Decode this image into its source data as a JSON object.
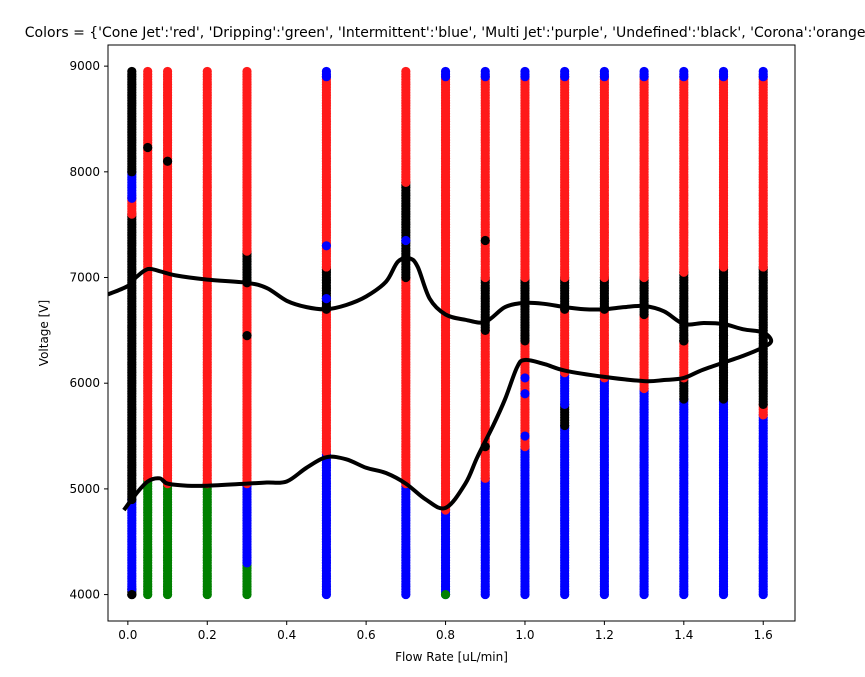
{
  "chart_data": {
    "type": "scatter",
    "title": "Colors = {'Cone Jet':'red', 'Dripping':'green', 'Intermittent':'blue', 'Multi Jet':'purple', 'Undefined':'black', 'Corona':'orange'}",
    "xlabel": "Flow Rate [uL/min]",
    "ylabel": "Voltage [V]",
    "xlim": [
      -0.05,
      1.68
    ],
    "ylim": [
      3750,
      9200
    ],
    "xticks": [
      0.0,
      0.2,
      0.4,
      0.6,
      0.8,
      1.0,
      1.2,
      1.4,
      1.6
    ],
    "xtick_labels": [
      "0.0",
      "0.2",
      "0.4",
      "0.6",
      "0.8",
      "1.0",
      "1.2",
      "1.4",
      "1.6"
    ],
    "yticks": [
      4000,
      5000,
      6000,
      7000,
      8000,
      9000
    ],
    "ytick_labels": [
      "4000",
      "5000",
      "6000",
      "7000",
      "8000",
      "9000"
    ],
    "grid": false,
    "colors": {
      "Cone Jet": "#ff1a1a",
      "Dripping": "#008000",
      "Intermittent": "#0000ff",
      "Multi Jet": "#800080",
      "Undefined": "#000000",
      "Corona": "#ffa500"
    },
    "series": [
      {
        "x": 0.01,
        "segments": [
          [
            4000,
            4050,
            "Undefined"
          ],
          [
            4050,
            4900,
            "Intermittent"
          ],
          [
            4900,
            7600,
            "Undefined"
          ],
          [
            7600,
            7750,
            "Cone Jet"
          ],
          [
            7750,
            8000,
            "Intermittent"
          ],
          [
            8000,
            8950,
            "Undefined"
          ]
        ]
      },
      {
        "x": 0.05,
        "segments": [
          [
            4000,
            5100,
            "Dripping"
          ],
          [
            5100,
            8950,
            "Cone Jet"
          ]
        ]
      },
      {
        "x": 0.1,
        "segments": [
          [
            4000,
            5050,
            "Dripping"
          ],
          [
            5050,
            8950,
            "Cone Jet"
          ]
        ]
      },
      {
        "x": 0.2,
        "segments": [
          [
            4000,
            5050,
            "Dripping"
          ],
          [
            5050,
            8950,
            "Cone Jet"
          ]
        ]
      },
      {
        "x": 0.3,
        "segments": [
          [
            4000,
            4300,
            "Dripping"
          ],
          [
            4300,
            5050,
            "Intermittent"
          ],
          [
            5050,
            6950,
            "Cone Jet"
          ],
          [
            6950,
            7250,
            "Undefined"
          ],
          [
            7250,
            8950,
            "Cone Jet"
          ]
        ]
      },
      {
        "x": 0.5,
        "segments": [
          [
            4000,
            4300,
            "Intermittent"
          ],
          [
            4300,
            5350,
            "Intermittent"
          ],
          [
            5350,
            6700,
            "Cone Jet"
          ],
          [
            6700,
            7100,
            "Undefined"
          ],
          [
            7100,
            8900,
            "Cone Jet"
          ],
          [
            8900,
            8950,
            "Intermittent"
          ]
        ]
      },
      {
        "x": 0.7,
        "segments": [
          [
            4000,
            5050,
            "Intermittent"
          ],
          [
            5050,
            7000,
            "Cone Jet"
          ],
          [
            7000,
            7900,
            "Undefined"
          ],
          [
            7900,
            8950,
            "Cone Jet"
          ]
        ]
      },
      {
        "x": 0.8,
        "segments": [
          [
            4000,
            4800,
            "Intermittent"
          ],
          [
            4800,
            7000,
            "Cone Jet"
          ],
          [
            7000,
            8900,
            "Cone Jet"
          ],
          [
            8900,
            8950,
            "Intermittent"
          ]
        ]
      },
      {
        "x": 0.9,
        "segments": [
          [
            4000,
            5100,
            "Intermittent"
          ],
          [
            5100,
            6500,
            "Cone Jet"
          ],
          [
            6500,
            7000,
            "Undefined"
          ],
          [
            7000,
            8900,
            "Cone Jet"
          ],
          [
            8900,
            8950,
            "Intermittent"
          ]
        ]
      },
      {
        "x": 1.0,
        "segments": [
          [
            4000,
            5400,
            "Intermittent"
          ],
          [
            5400,
            6400,
            "Cone Jet"
          ],
          [
            6400,
            7000,
            "Undefined"
          ],
          [
            7000,
            8900,
            "Cone Jet"
          ],
          [
            8900,
            8950,
            "Intermittent"
          ]
        ]
      },
      {
        "x": 1.1,
        "segments": [
          [
            4000,
            5600,
            "Intermittent"
          ],
          [
            5600,
            5800,
            "Undefined"
          ],
          [
            5800,
            6100,
            "Intermittent"
          ],
          [
            6100,
            6700,
            "Cone Jet"
          ],
          [
            6700,
            7000,
            "Undefined"
          ],
          [
            7000,
            8900,
            "Cone Jet"
          ],
          [
            8900,
            8950,
            "Intermittent"
          ]
        ]
      },
      {
        "x": 1.2,
        "segments": [
          [
            4000,
            6050,
            "Intermittent"
          ],
          [
            6050,
            6700,
            "Cone Jet"
          ],
          [
            6700,
            7000,
            "Undefined"
          ],
          [
            7000,
            8900,
            "Cone Jet"
          ],
          [
            8900,
            8950,
            "Intermittent"
          ]
        ]
      },
      {
        "x": 1.3,
        "segments": [
          [
            4000,
            5950,
            "Intermittent"
          ],
          [
            5950,
            6650,
            "Cone Jet"
          ],
          [
            6650,
            7000,
            "Undefined"
          ],
          [
            7000,
            8900,
            "Cone Jet"
          ],
          [
            8900,
            8950,
            "Intermittent"
          ]
        ]
      },
      {
        "x": 1.4,
        "segments": [
          [
            4000,
            5850,
            "Intermittent"
          ],
          [
            5850,
            6050,
            "Undefined"
          ],
          [
            6050,
            6400,
            "Cone Jet"
          ],
          [
            6400,
            7050,
            "Undefined"
          ],
          [
            7050,
            8900,
            "Cone Jet"
          ],
          [
            8900,
            8950,
            "Intermittent"
          ]
        ]
      },
      {
        "x": 1.5,
        "segments": [
          [
            4000,
            5850,
            "Intermittent"
          ],
          [
            5850,
            6450,
            "Undefined"
          ],
          [
            6450,
            7100,
            "Undefined"
          ],
          [
            7100,
            8900,
            "Cone Jet"
          ],
          [
            8900,
            8950,
            "Intermittent"
          ]
        ]
      },
      {
        "x": 1.6,
        "segments": [
          [
            4000,
            5700,
            "Intermittent"
          ],
          [
            5700,
            5800,
            "Cone Jet"
          ],
          [
            5800,
            7100,
            "Undefined"
          ],
          [
            7100,
            8900,
            "Cone Jet"
          ],
          [
            8900,
            8950,
            "Intermittent"
          ]
        ]
      }
    ],
    "markers": [
      {
        "x": 0.05,
        "y": 8230,
        "category": "Undefined"
      },
      {
        "x": 0.1,
        "y": 8100,
        "category": "Undefined"
      },
      {
        "x": 0.3,
        "y": 6450,
        "category": "Undefined"
      },
      {
        "x": 0.5,
        "y": 7300,
        "category": "Intermittent"
      },
      {
        "x": 0.5,
        "y": 6800,
        "category": "Intermittent"
      },
      {
        "x": 0.7,
        "y": 7350,
        "category": "Intermittent"
      },
      {
        "x": 0.8,
        "y": 4000,
        "category": "Dripping"
      },
      {
        "x": 0.9,
        "y": 7350,
        "category": "Undefined"
      },
      {
        "x": 0.9,
        "y": 5400,
        "category": "Undefined"
      },
      {
        "x": 1.0,
        "y": 5900,
        "category": "Intermittent"
      },
      {
        "x": 1.0,
        "y": 5500,
        "category": "Intermittent"
      },
      {
        "x": 1.0,
        "y": 6050,
        "category": "Intermittent"
      },
      {
        "x": 1.4,
        "y": 6400,
        "category": "Undefined"
      },
      {
        "x": 1.5,
        "y": 6350,
        "category": "Undefined"
      },
      {
        "x": 1.5,
        "y": 6200,
        "category": "Undefined"
      },
      {
        "x": 0.01,
        "y": 4000,
        "category": "Undefined"
      }
    ],
    "boundary_curves": [
      {
        "points": [
          [
            -0.05,
            6840
          ],
          [
            0.0,
            6920
          ],
          [
            0.02,
            7000
          ],
          [
            0.05,
            7080
          ],
          [
            0.08,
            7060
          ],
          [
            0.12,
            7020
          ],
          [
            0.2,
            6980
          ],
          [
            0.3,
            6950
          ],
          [
            0.35,
            6900
          ],
          [
            0.4,
            6780
          ],
          [
            0.45,
            6720
          ],
          [
            0.5,
            6700
          ],
          [
            0.55,
            6740
          ],
          [
            0.6,
            6820
          ],
          [
            0.65,
            6960
          ],
          [
            0.68,
            7150
          ],
          [
            0.71,
            7180
          ],
          [
            0.73,
            7100
          ],
          [
            0.76,
            6800
          ],
          [
            0.8,
            6650
          ],
          [
            0.85,
            6600
          ],
          [
            0.9,
            6580
          ],
          [
            0.95,
            6720
          ],
          [
            1.0,
            6760
          ],
          [
            1.05,
            6750
          ],
          [
            1.1,
            6720
          ],
          [
            1.15,
            6700
          ],
          [
            1.2,
            6700
          ],
          [
            1.25,
            6720
          ],
          [
            1.3,
            6730
          ],
          [
            1.35,
            6680
          ],
          [
            1.4,
            6560
          ],
          [
            1.45,
            6570
          ],
          [
            1.5,
            6560
          ],
          [
            1.55,
            6510
          ],
          [
            1.6,
            6480
          ],
          [
            1.62,
            6400
          ],
          [
            1.6,
            6340
          ],
          [
            1.55,
            6260
          ],
          [
            1.45,
            6130
          ],
          [
            1.4,
            6050
          ],
          [
            1.35,
            6030
          ],
          [
            1.3,
            6020
          ],
          [
            1.2,
            6060
          ],
          [
            1.1,
            6120
          ],
          [
            1.05,
            6180
          ],
          [
            1.0,
            6220
          ],
          [
            0.98,
            6150
          ],
          [
            0.95,
            5850
          ],
          [
            0.92,
            5600
          ],
          [
            0.88,
            5300
          ],
          [
            0.85,
            5050
          ],
          [
            0.8,
            4820
          ],
          [
            0.75,
            4900
          ],
          [
            0.7,
            5050
          ],
          [
            0.65,
            5150
          ],
          [
            0.6,
            5200
          ],
          [
            0.55,
            5280
          ],
          [
            0.5,
            5300
          ],
          [
            0.45,
            5200
          ],
          [
            0.4,
            5070
          ],
          [
            0.35,
            5060
          ],
          [
            0.3,
            5050
          ],
          [
            0.2,
            5030
          ],
          [
            0.15,
            5030
          ],
          [
            0.1,
            5050
          ],
          [
            0.08,
            5100
          ],
          [
            0.05,
            5070
          ],
          [
            0.02,
            4950
          ],
          [
            -0.01,
            4800
          ]
        ]
      }
    ]
  }
}
